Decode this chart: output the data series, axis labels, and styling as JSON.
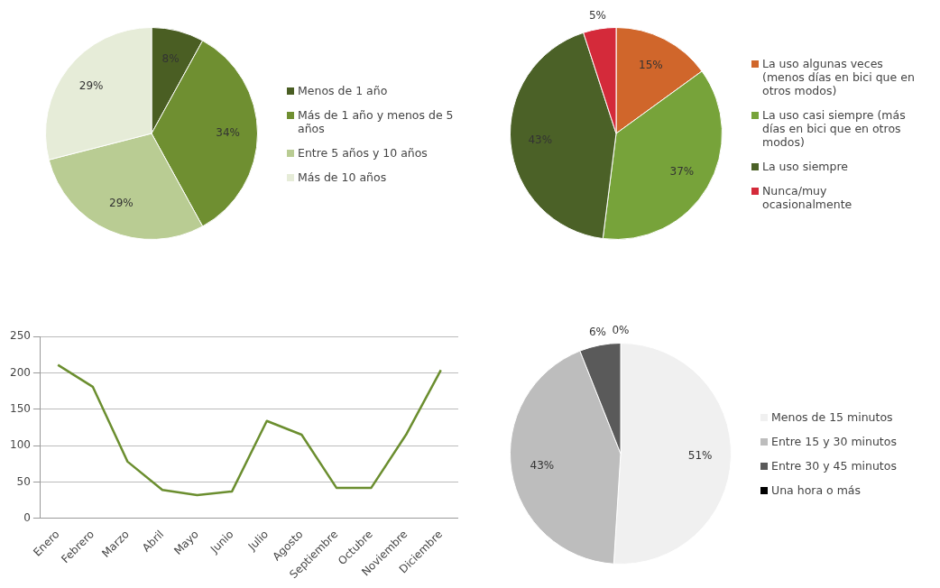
{
  "chart_data": [
    {
      "type": "pie",
      "categories": [
        "Menos de 1 año",
        "Más de 1 año y menos de 5 años",
        "Entre 5 años y 10 años",
        "Más de 10 años"
      ],
      "values": [
        8,
        34,
        29,
        29
      ],
      "colors": [
        "#4a5e23",
        "#6f8f31",
        "#b9cc93",
        "#e6ecd8"
      ],
      "value_labels": [
        "8%",
        "34%",
        "29%",
        "29%"
      ],
      "legend": "right"
    },
    {
      "type": "pie",
      "categories": [
        "La uso algunas veces (menos días en bici que en otros modos)",
        "La uso casi siempre (más días en bici que en otros modos)",
        "La uso siempre",
        "Nunca/muy ocasionalmente"
      ],
      "values": [
        15,
        37,
        43,
        5
      ],
      "colors": [
        "#d0662b",
        "#77a33a",
        "#4b6127",
        "#d42a3a"
      ],
      "value_labels": [
        "15%",
        "37%",
        "43%",
        "5%"
      ],
      "legend": "right"
    },
    {
      "type": "line",
      "categories": [
        "Enero",
        "Febrero",
        "Marzo",
        "Abril",
        "Mayo",
        "Junio",
        "Julio",
        "Agosto",
        "Septiembre",
        "Octubre",
        "Noviembre",
        "Diciembre"
      ],
      "series": [
        {
          "color": "#6b8e2f",
          "values": [
            211,
            181,
            78,
            39,
            32,
            37,
            134,
            115,
            42,
            42,
            115,
            204
          ]
        }
      ],
      "ylim": [
        0,
        250
      ],
      "yticks": [
        0,
        50,
        100,
        150,
        200,
        250
      ],
      "grid": "y",
      "marker": "none",
      "legend": false
    },
    {
      "type": "pie",
      "categories": [
        "Menos de 15 minutos",
        "Entre 15 y 30 minutos",
        "Entre 30 y 45 minutos",
        "Una hora o más"
      ],
      "values": [
        51,
        43,
        6,
        0
      ],
      "colors": [
        "#f0f0f0",
        "#bdbdbd",
        "#5a5a5a",
        "#000000"
      ],
      "value_labels": [
        "51%",
        "43%",
        "6%",
        "0%"
      ],
      "legend": "right"
    }
  ]
}
